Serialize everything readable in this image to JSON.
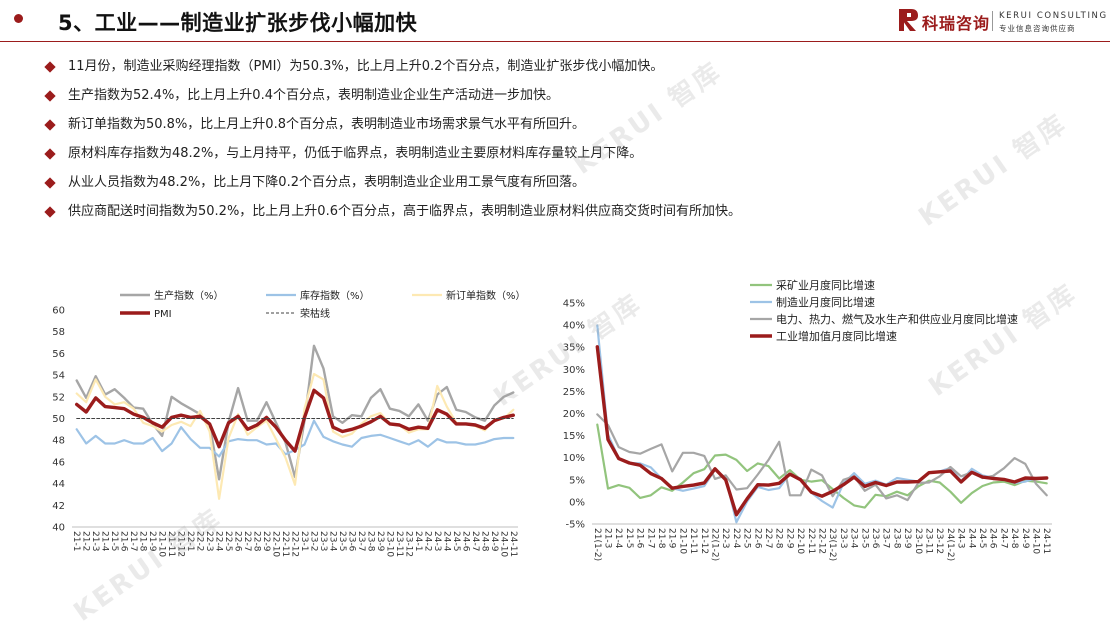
{
  "header": {
    "title": "5、工业——制造业扩张步伐小幅加快",
    "logo_cn": "科瑞咨询",
    "logo_en": "KERUI CONSULTING",
    "logo_sub": "专业信息咨询供应商"
  },
  "bullets": [
    "11月份，制造业采购经理指数（PMI）为50.3%，比上月上升0.2个百分点，制造业扩张步伐小幅加快。",
    "生产指数为52.4%，比上月上升0.4个百分点，表明制造业企业生产活动进一步加快。",
    "新订单指数为50.8%，比上月上升0.8个百分点，表明制造业市场需求景气水平有所回升。",
    "原材料库存指数为48.2%，与上月持平，仍低于临界点，表明制造业主要原材料库存量较上月下降。",
    "从业人员指数为48.2%，比上月下降0.2个百分点，表明制造业企业用工景气度有所回落。",
    "供应商配送时间指数为50.2%，比上月上升0.6个百分点，高于临界点，表明制造业原材料供应商交货时间有所加快。"
  ],
  "watermarks": [
    "KERUI 智库",
    "KERUI 智库",
    "KERUI 智库",
    "KERUI 智库",
    "KERUI 智库"
  ],
  "chart_data": [
    {
      "type": "line",
      "ylim": [
        40,
        60
      ],
      "yticks": [
        "40",
        "42",
        "44",
        "46",
        "48",
        "50",
        "52",
        "54",
        "56",
        "58",
        "60"
      ],
      "x": [
        "21-1",
        "21-2",
        "21-3",
        "21-4",
        "21-5",
        "21-6",
        "21-7",
        "21-8",
        "21-9",
        "21-10",
        "21-11",
        "21-12",
        "22-1",
        "22-2",
        "22-3",
        "22-4",
        "22-5",
        "22-6",
        "22-7",
        "22-8",
        "22-9",
        "22-10",
        "22-11",
        "22-12",
        "23-1",
        "23-2",
        "23-3",
        "23-4",
        "23-5",
        "23-6",
        "23-7",
        "23-8",
        "23-9",
        "23-10",
        "23-11",
        "23-12",
        "24-1",
        "24-2",
        "24-3",
        "24-4",
        "24-5",
        "24-6",
        "24-7",
        "24-8",
        "24-9",
        "24-10",
        "24-11"
      ],
      "series": [
        {
          "name": "生产指数（%）",
          "color": "#a6a6a6",
          "width": 2.4,
          "values": [
            53.5,
            51.9,
            53.9,
            52.2,
            52.7,
            51.9,
            51.0,
            50.9,
            49.5,
            48.4,
            52.0,
            51.4,
            50.9,
            50.4,
            49.5,
            44.4,
            49.7,
            52.8,
            49.8,
            49.8,
            51.5,
            49.6,
            47.8,
            44.6,
            49.8,
            56.7,
            54.6,
            50.2,
            49.6,
            50.3,
            50.2,
            51.9,
            52.7,
            50.9,
            50.7,
            50.2,
            51.3,
            49.8,
            52.2,
            52.9,
            50.8,
            50.6,
            50.1,
            49.8,
            51.2,
            52.0,
            52.4
          ]
        },
        {
          "name": "库存指数（%）",
          "color": "#9dc3e6",
          "width": 2.2,
          "values": [
            49.0,
            47.7,
            48.4,
            47.7,
            47.7,
            48.0,
            47.7,
            47.7,
            48.2,
            47.0,
            47.7,
            49.2,
            48.1,
            47.3,
            47.3,
            46.5,
            47.9,
            48.1,
            48.0,
            48.0,
            47.6,
            47.7,
            46.7,
            47.1,
            47.6,
            49.8,
            48.3,
            47.9,
            47.6,
            47.4,
            48.2,
            48.4,
            48.5,
            48.2,
            47.9,
            47.6,
            48.0,
            47.4,
            48.1,
            47.8,
            47.8,
            47.6,
            47.6,
            47.8,
            48.1,
            48.2,
            48.2
          ]
        },
        {
          "name": "新订单指数（%）",
          "color": "#fde9b3",
          "width": 2.2,
          "values": [
            52.3,
            51.5,
            53.6,
            52.0,
            51.3,
            51.5,
            50.9,
            49.6,
            49.3,
            48.8,
            49.4,
            49.7,
            49.3,
            50.7,
            48.8,
            42.6,
            48.2,
            50.4,
            48.5,
            49.2,
            49.8,
            48.1,
            46.4,
            43.9,
            50.9,
            54.1,
            53.6,
            48.8,
            48.3,
            48.6,
            49.5,
            50.2,
            50.5,
            49.5,
            49.4,
            48.7,
            49.0,
            49.0,
            53.0,
            51.1,
            49.6,
            49.5,
            49.3,
            48.9,
            49.9,
            50.0,
            50.8
          ]
        },
        {
          "name": "PMI",
          "color": "#9b1c1c",
          "width": 3.4,
          "values": [
            51.3,
            50.6,
            51.9,
            51.1,
            51.0,
            50.9,
            50.4,
            50.1,
            49.6,
            49.2,
            50.1,
            50.3,
            50.1,
            50.2,
            49.5,
            47.4,
            49.6,
            50.2,
            49.0,
            49.4,
            50.1,
            49.2,
            48.0,
            47.0,
            50.1,
            52.6,
            51.9,
            49.2,
            48.8,
            49.0,
            49.3,
            49.7,
            50.2,
            49.5,
            49.4,
            49.0,
            49.2,
            49.1,
            50.8,
            50.4,
            49.5,
            49.5,
            49.4,
            49.1,
            49.8,
            50.1,
            50.3
          ]
        },
        {
          "name": "荣枯线",
          "color": "#404040",
          "width": 1,
          "dashed": true,
          "values": [
            50,
            50,
            50,
            50,
            50,
            50,
            50,
            50,
            50,
            50,
            50,
            50,
            50,
            50,
            50,
            50,
            50,
            50,
            50,
            50,
            50,
            50,
            50,
            50,
            50,
            50,
            50,
            50,
            50,
            50,
            50,
            50,
            50,
            50,
            50,
            50,
            50,
            50,
            50,
            50,
            50,
            50,
            50,
            50,
            50,
            50,
            50
          ]
        }
      ]
    },
    {
      "type": "line",
      "ylim": [
        -5,
        45
      ],
      "yticks": [
        "-5%",
        "0%",
        "5%",
        "10%",
        "15%",
        "20%",
        "25%",
        "30%",
        "35%",
        "40%",
        "45%"
      ],
      "x": [
        "21(1-2)",
        "21-3",
        "21-4",
        "21-5",
        "21-6",
        "21-7",
        "21-8",
        "21-9",
        "21-10",
        "21-11",
        "21-12",
        "22(1-2)",
        "22-3",
        "22-4",
        "22-5",
        "22-6",
        "22-7",
        "22-8",
        "22-9",
        "22-10",
        "22-11",
        "22-12",
        "23(1-2)",
        "23-3",
        "23-4",
        "23-5",
        "23-6",
        "23-7",
        "23-8",
        "23-9",
        "23-10",
        "23-11",
        "23-12",
        "24(1-2)",
        "24-3",
        "24-4",
        "24-5",
        "24-6",
        "24-7",
        "24-8",
        "24-9",
        "24-10",
        "24-11"
      ],
      "series": [
        {
          "name": "采矿业月度同比增速",
          "color": "#92c47d",
          "width": 2.2,
          "values": [
            17.5,
            3.0,
            3.8,
            3.2,
            0.9,
            1.5,
            3.3,
            2.5,
            4.4,
            6.5,
            7.4,
            10.5,
            10.7,
            9.5,
            7.0,
            8.7,
            8.1,
            5.3,
            7.2,
            5.0,
            4.6,
            4.9,
            2.9,
            0.9,
            -0.8,
            -1.3,
            1.6,
            1.3,
            2.3,
            1.5,
            3.5,
            4.8,
            4.4,
            2.3,
            -0.2,
            2.0,
            3.6,
            4.4,
            4.6,
            3.8,
            4.8,
            4.6,
            4.2
          ]
        },
        {
          "name": "制造业月度同比增速",
          "color": "#9dc3e6",
          "width": 2.2,
          "values": [
            39.9,
            15.2,
            9.9,
            8.8,
            8.7,
            7.8,
            5.3,
            3.1,
            2.5,
            3.0,
            3.6,
            7.3,
            5.4,
            -4.6,
            0.1,
            3.4,
            2.7,
            3.1,
            6.4,
            5.2,
            2.1,
            0.2,
            -1.3,
            4.2,
            6.5,
            4.1,
            4.8,
            3.9,
            5.4,
            5.0,
            4.6,
            6.7,
            6.9,
            7.7,
            4.7,
            7.5,
            6.0,
            5.5,
            5.1,
            4.3,
            4.6,
            5.4,
            5.4
          ]
        },
        {
          "name": "电力、热力、燃气及水生产和供应业月度同比增速",
          "color": "#a6a6a6",
          "width": 2.2,
          "values": [
            19.8,
            17.4,
            12.4,
            11.3,
            10.9,
            12.0,
            13.0,
            6.9,
            11.1,
            11.1,
            10.4,
            5.2,
            6.0,
            2.8,
            3.1,
            6.2,
            9.5,
            13.6,
            1.5,
            1.5,
            7.3,
            6.0,
            1.3,
            5.0,
            5.8,
            2.5,
            3.9,
            0.8,
            1.5,
            0.4,
            4.3,
            4.4,
            5.8,
            7.9,
            5.8,
            6.7,
            5.4,
            5.9,
            7.6,
            9.9,
            8.6,
            4.1,
            1.5
          ]
        },
        {
          "name": "工业增加值月度同比增速",
          "color": "#9b1c1c",
          "width": 3.4,
          "values": [
            35.1,
            14.1,
            9.8,
            8.8,
            8.3,
            6.4,
            5.3,
            3.1,
            3.5,
            3.8,
            4.3,
            7.5,
            5.0,
            -2.9,
            0.7,
            3.9,
            3.8,
            4.2,
            6.3,
            5.0,
            2.2,
            1.3,
            2.4,
            3.9,
            5.6,
            3.5,
            4.4,
            3.7,
            4.5,
            4.5,
            4.6,
            6.6,
            6.8,
            7.0,
            4.5,
            6.7,
            5.6,
            5.3,
            5.1,
            4.5,
            5.4,
            5.3,
            5.4
          ]
        }
      ]
    }
  ]
}
